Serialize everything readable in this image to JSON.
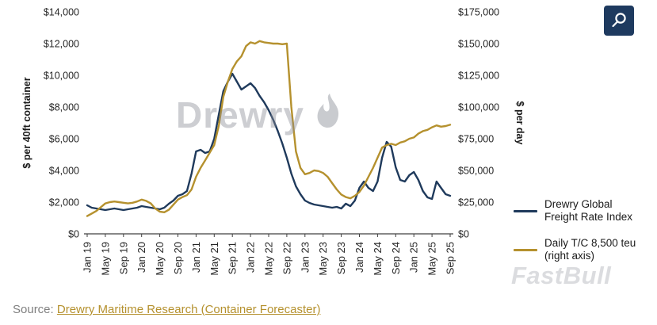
{
  "page": {
    "background": "#ffffff"
  },
  "toolbar": {
    "zoom_button": {
      "icon": "magnifier",
      "bg": "#1e3a5f"
    }
  },
  "watermarks": {
    "drewry": "Drewry",
    "fastbull": "FastBull"
  },
  "source": {
    "prefix": "Source:",
    "link_text": "Drewry Maritime Research (Container Forecaster)"
  },
  "legend": {
    "items": [
      {
        "line1": "Drewry Global",
        "line2": "Freight Rate Index",
        "color": "#1f3a5c"
      },
      {
        "line1": "Daily T/C 8,500 teu",
        "line2": "(right axis)",
        "color": "#b5912e"
      }
    ]
  },
  "chart_data": {
    "type": "line",
    "title": "",
    "grid": false,
    "legend_position": "right",
    "months": 81,
    "x_start": "Jan 19",
    "x_end": "Sep 25",
    "x_tick_labels": [
      "Jan 19",
      "May 19",
      "Sep 19",
      "Jan 20",
      "May 20",
      "Sep 20",
      "Jan 21",
      "May 21",
      "Sep 21",
      "Jan 22",
      "May 22",
      "Sep 22",
      "Jan 23",
      "May 23",
      "Sep 23",
      "Jan 24",
      "May 24",
      "Sep 24",
      "Jan 25",
      "May 25",
      "Sep 25"
    ],
    "x_tick_month_indices": [
      0,
      4,
      8,
      12,
      16,
      20,
      24,
      28,
      32,
      36,
      40,
      44,
      48,
      52,
      56,
      60,
      64,
      68,
      72,
      76,
      80
    ],
    "left_axis": {
      "label": "$ per 40ft container",
      "min": 0,
      "max": 14000,
      "tick_step": 2000,
      "tick_labels": [
        "$0",
        "$2,000",
        "$4,000",
        "$6,000",
        "$8,000",
        "$10,000",
        "$12,000",
        "$14,000"
      ]
    },
    "right_axis": {
      "label": "$ per day",
      "min": 0,
      "max": 175000,
      "tick_step": 25000,
      "tick_labels": [
        "$0",
        "$25,000",
        "$50,000",
        "$75,000",
        "$100,000",
        "$125,000",
        "$150,000",
        "$175,000"
      ]
    },
    "series": [
      {
        "name": "Drewry Global Freight Rate Index",
        "axis": "left",
        "color": "#1f3a5c",
        "values": [
          1800,
          1650,
          1600,
          1550,
          1500,
          1550,
          1600,
          1550,
          1500,
          1550,
          1600,
          1650,
          1750,
          1700,
          1650,
          1600,
          1550,
          1650,
          1900,
          2100,
          2400,
          2500,
          2700,
          3800,
          5200,
          5300,
          5100,
          5200,
          6000,
          7500,
          9000,
          9600,
          10100,
          9600,
          9100,
          9300,
          9500,
          9200,
          8700,
          8300,
          7800,
          7200,
          6500,
          5700,
          4800,
          3800,
          3000,
          2500,
          2100,
          1950,
          1850,
          1800,
          1750,
          1700,
          1650,
          1700,
          1600,
          1900,
          1750,
          2100,
          2900,
          3300,
          2900,
          2700,
          3300,
          4800,
          5800,
          5500,
          4200,
          3400,
          3300,
          3700,
          3900,
          3400,
          2700,
          2300,
          2200,
          3300,
          2900,
          2500,
          2400
        ]
      },
      {
        "name": "Daily T/C 8,500 teu (right axis)",
        "axis": "right",
        "color": "#b5912e",
        "values": [
          14000,
          16000,
          18000,
          21000,
          24000,
          25000,
          25500,
          25000,
          24500,
          24000,
          24500,
          25500,
          27000,
          26000,
          24000,
          20000,
          17500,
          17000,
          19000,
          23000,
          27000,
          29000,
          30500,
          35000,
          45000,
          52000,
          58000,
          64000,
          70000,
          85000,
          108000,
          120000,
          130000,
          136000,
          140000,
          148000,
          151000,
          150000,
          152000,
          151000,
          150500,
          150000,
          150000,
          149500,
          150000,
          100000,
          65000,
          52000,
          47000,
          48000,
          50000,
          49500,
          48000,
          45000,
          40000,
          35000,
          31000,
          29000,
          28000,
          30000,
          33000,
          38000,
          45000,
          52000,
          60000,
          68000,
          70000,
          71000,
          70000,
          72000,
          73000,
          75000,
          76000,
          79000,
          81000,
          82000,
          84000,
          85500,
          84500,
          85000,
          86000
        ]
      }
    ]
  }
}
